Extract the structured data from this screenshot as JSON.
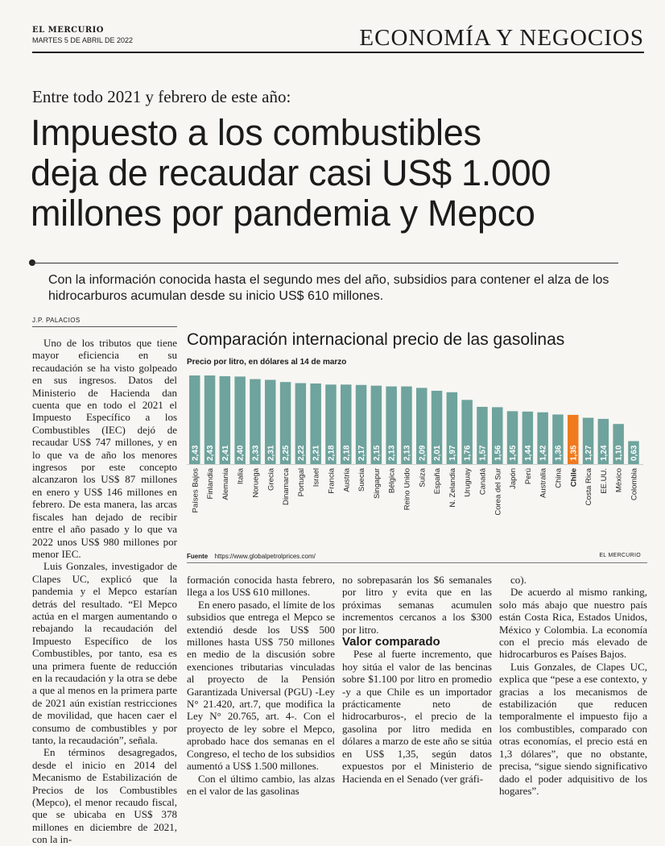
{
  "masthead": {
    "paper": "EL MERCURIO",
    "date": "MARTES 5 DE ABRIL DE 2022",
    "section": "ECONOMÍA Y NEGOCIOS"
  },
  "article": {
    "kicker": "Entre todo 2021 y febrero de este año:",
    "headline_lines": [
      "Impuesto a los combustibles",
      "deja de recaudar casi US$ 1.000",
      "millones por pandemia y Mepco"
    ],
    "deck": "Con la información conocida hasta el segundo mes del año, subsidios para contener el alza de los hidrocarburos acumulan desde su inicio US$ 610 millones.",
    "byline": "J.P. PALACIOS",
    "col1": [
      "Uno de los tributos que tiene mayor eficiencia en su recaudación se ha visto golpeado en sus ingresos. Datos del Ministerio de Hacienda dan cuenta que en todo el 2021 el Impuesto Específico a los Combustibles (IEC) dejó de recaudar US$ 747 millones, y en lo que va de año los menores ingresos por este concepto alcanzaron los US$ 87 millones en enero y US$ 146 millones en febrero. De esta manera, las arcas fiscales han dejado de recibir entre el año pasado y lo que va 2022 unos US$ 980 millones por menor IEC.",
      "Luis Gonzales, investigador de Clapes UC, explicó que la pandemia y el Mepco estarían detrás del resultado. “El Mepco actúa en el margen aumentando o rebajando la recaudación del Impuesto Específico de los Combustibles, por tanto, esa es una primera fuente de reducción en la recaudación y la otra se debe a que al menos en la primera parte de 2021 aún existían restricciones de movilidad, que hacen caer el consumo de combustibles y por tanto, la recaudación”, señala.",
      "En términos desagregados, desde el inicio en 2014 del Mecanismo de Estabilización de Precios de los Combustibles (Mepco), el menor recaudo fiscal, que se ubicaba en US$ 378 millones en diciembre de 2021, con la in-"
    ],
    "col2": [
      "formación conocida hasta febrero, llega a los US$ 610 millones.",
      "En enero pasado, el límite de los subsidios que entrega el Mepco se extendió desde los US$ 500 millones hasta US$ 750 millones en medio de la discusión sobre exenciones tributarias vinculadas al proyecto de la Pensión Garantizada Universal (PGU) -Ley N° 21.420, art.7, que modifica la Ley N° 20.765, art. 4-. Con el proyecto de ley sobre el Mepco, aprobado hace dos semanas en el Congreso, el techo de los subsidios aumentó a US$ 1.500 millones.",
      "Con el último cambio, las alzas en el valor de las gasolinas"
    ],
    "col3_top": "no sobrepasarán los $6 semanales por litro y evita que en las próximas semanas acumulen incrementos cercanos a los $300 por litro.",
    "subhead": "Valor comparado",
    "col3_bottom": "Pese al fuerte incremento, que hoy sitúa el valor de las bencinas sobre $1.100 por litro en promedio -y a que Chile es un importador prácticamente neto de hidrocarburos-, el precio de la gasolina por litro medida en dólares a marzo de este año se sitúa en US$ 1,35, según datos expuestos por el Ministerio de Hacienda en el Senado (ver gráfi-",
    "col4": [
      "co).",
      "De acuerdo al mismo ranking, solo más abajo que nuestro país están Costa Rica, Estados Unidos, México y Colombia. La economía con el precio más elevado de hidrocarburos es Países Bajos.",
      "Luis Gonzales, de Clapes UC, explica que “pese a ese contexto, y gracias a los mecanismos de estabilización que reducen temporalmente el impuesto fijo a los combustibles, comparado con otras economías, el precio está en 1,3 dólares”, que no obstante, precisa, “sigue siendo significativo dado el poder adquisitivo de los hogares”."
    ]
  },
  "chart_data": {
    "type": "bar",
    "title": "Comparación internacional precio de las gasolinas",
    "subtitle": "Precio por litro, en dólares al 14 de marzo",
    "categories": [
      "Países Bajos",
      "Finlandia",
      "Alemania",
      "Italia",
      "Noruega",
      "Grecia",
      "Dinamarca",
      "Portugal",
      "Israel",
      "Francia",
      "Austria",
      "Suecia",
      "Singapur",
      "Bélgica",
      "Reino Unido",
      "Suiza",
      "España",
      "N. Zelandia",
      "Uruguay",
      "Canadá",
      "Corea del Sur",
      "Japón",
      "Perú",
      "Australia",
      "China",
      "Chile",
      "Costa Rica",
      "EE.UU.",
      "México",
      "Colombia"
    ],
    "values": [
      2.43,
      2.43,
      2.41,
      2.4,
      2.33,
      2.31,
      2.25,
      2.22,
      2.21,
      2.18,
      2.18,
      2.17,
      2.15,
      2.13,
      2.13,
      2.09,
      2.01,
      1.97,
      1.76,
      1.57,
      1.56,
      1.45,
      1.44,
      1.42,
      1.36,
      1.35,
      1.27,
      1.24,
      1.1,
      0.63
    ],
    "value_labels": [
      "2,43",
      "2,43",
      "2,41",
      "2,40",
      "2,33",
      "2,31",
      "2,25",
      "2,22",
      "2,21",
      "2,18",
      "2,18",
      "2,17",
      "2,15",
      "2,13",
      "2,13",
      "2,09",
      "2,01",
      "1,97",
      "1,76",
      "1,57",
      "1,56",
      "1,45",
      "1,44",
      "1,42",
      "1,36",
      "1,35",
      "1,27",
      "1,24",
      "1,10",
      "0,63"
    ],
    "highlight": "Chile",
    "colors": {
      "bar": "#6fa39d",
      "highlight": "#f07a1e"
    },
    "source_label": "Fuente",
    "source_url": "https://www.globalpetrolprices.com/",
    "brand": "EL MERCURIO"
  }
}
